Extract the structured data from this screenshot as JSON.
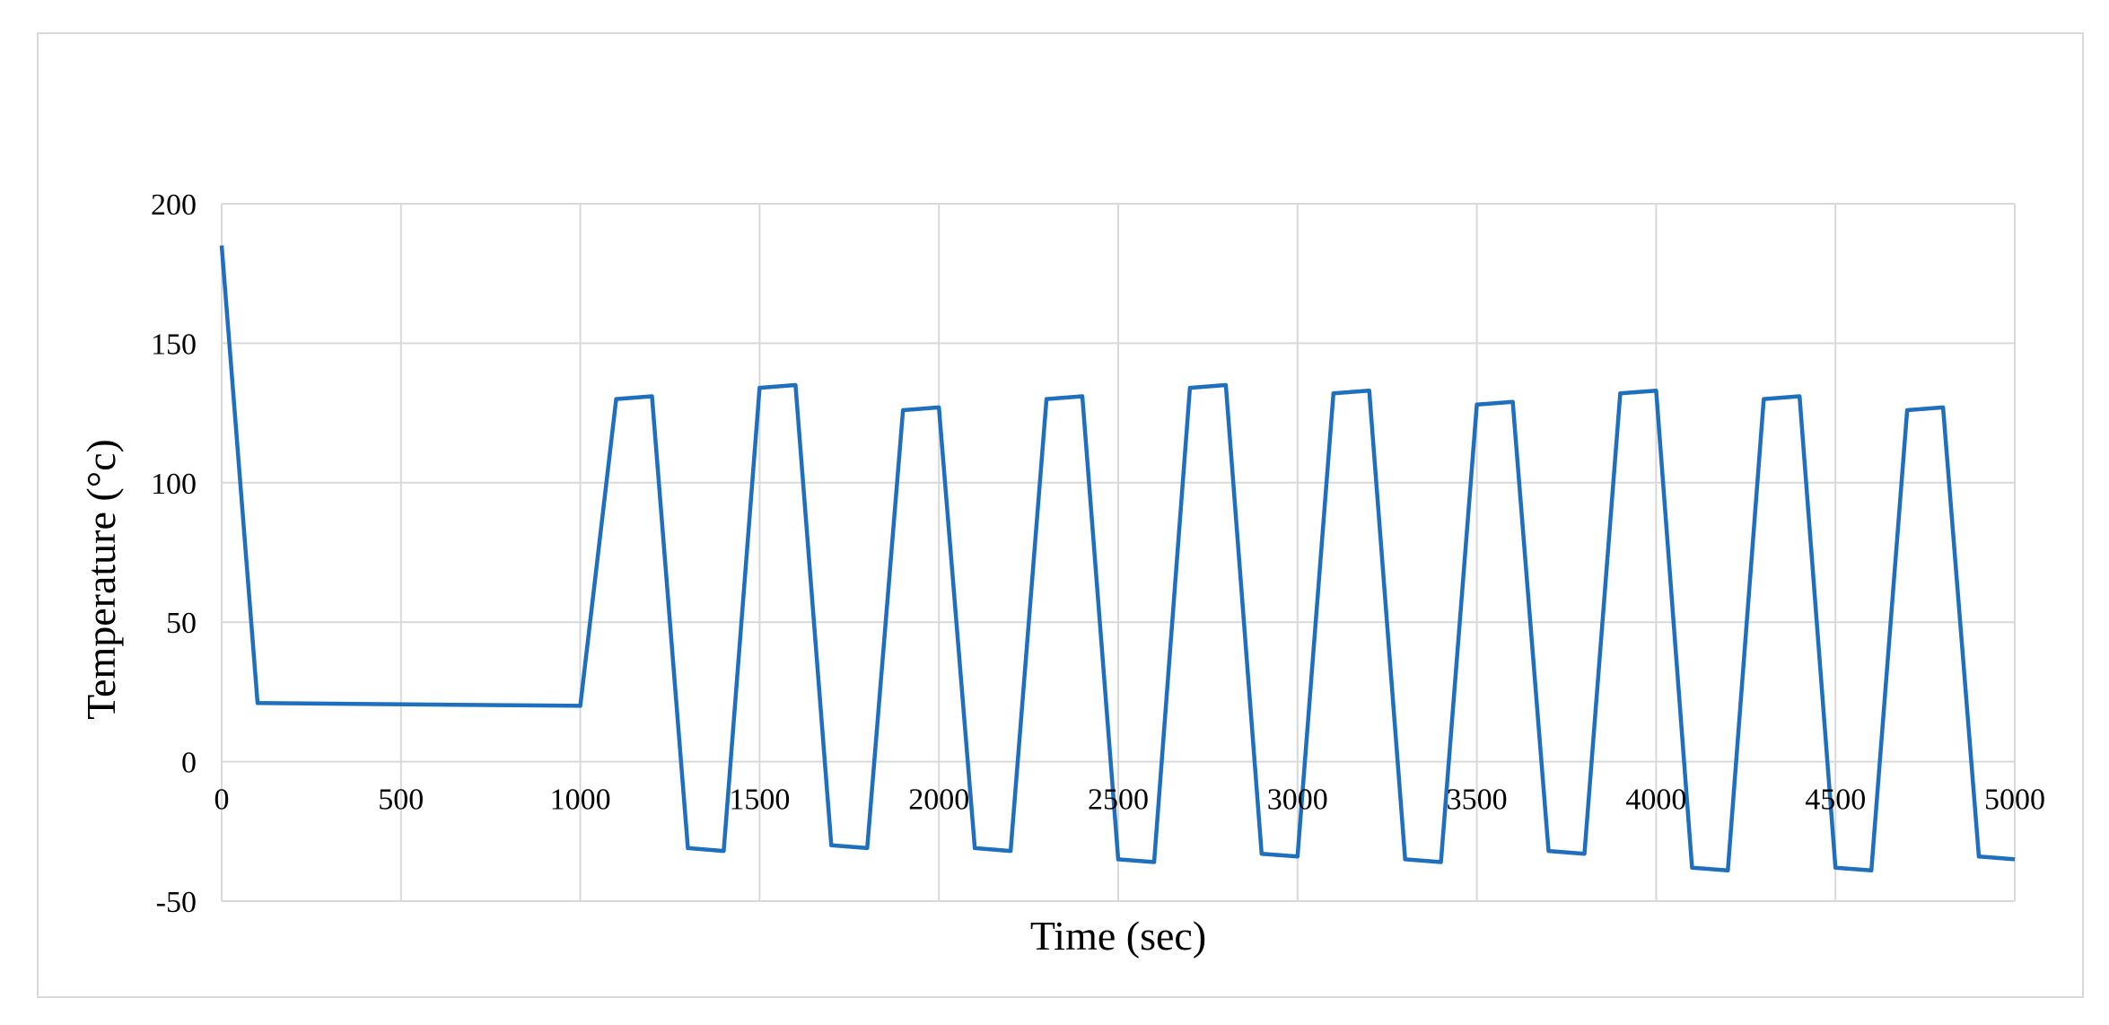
{
  "chart_data": {
    "type": "line",
    "title": "",
    "xlabel": "Time (sec)",
    "ylabel": "Temperature (°c)",
    "xlim": [
      0,
      5000
    ],
    "ylim": [
      -50,
      200
    ],
    "xticks": [
      0,
      500,
      1000,
      1500,
      2000,
      2500,
      3000,
      3500,
      4000,
      4500,
      5000
    ],
    "yticks": [
      -50,
      0,
      50,
      100,
      150,
      200
    ],
    "grid": true,
    "legend": "none",
    "series": [
      {
        "color": "#1f6fbf",
        "x": [
          0,
          100,
          1000,
          1100,
          1200,
          1300,
          1400,
          1500,
          1600,
          1700,
          1800,
          1900,
          2000,
          2100,
          2200,
          2300,
          2400,
          2500,
          2600,
          2700,
          2800,
          2900,
          3000,
          3100,
          3200,
          3300,
          3400,
          3500,
          3600,
          3700,
          3800,
          3900,
          4000,
          4100,
          4200,
          4300,
          4400,
          4500,
          4600,
          4700,
          4800,
          4900,
          5000
        ],
        "y": [
          185,
          21,
          20,
          130,
          131,
          -31,
          -32,
          134,
          135,
          -30,
          -31,
          126,
          127,
          -31,
          -32,
          130,
          131,
          -35,
          -36,
          134,
          135,
          -33,
          -34,
          132,
          133,
          -35,
          -36,
          128,
          129,
          -32,
          -33,
          132,
          133,
          -38,
          -39,
          130,
          131,
          -38,
          -39,
          126,
          127,
          -34,
          -35
        ]
      }
    ]
  }
}
